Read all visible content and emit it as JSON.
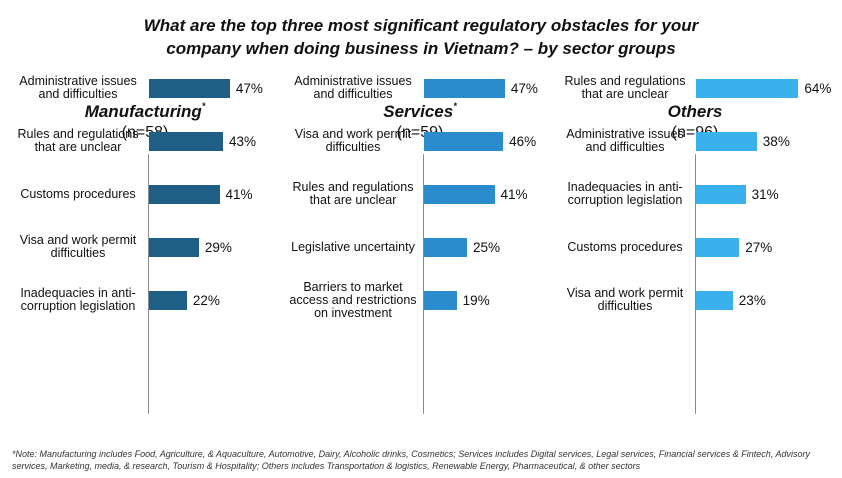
{
  "title_lines": [
    "What are the top three most significant regulatory obstacles for your",
    "company when doing business in Vietnam? – by sector groups"
  ],
  "footnote": "*Note: Manufacturing includes Food, Agriculture, & Aquaculture, Automotive, Dairy, Alcoholic drinks, Cosmetics; Services includes Digital services, Legal services, Financial services & Fintech, Advisory services, Marketing, media, & research, Tourism & Hospitality; Others includes Transportation & logistics, Renewable Energy, Pharmaceutical, & other sectors",
  "chart_data": [
    {
      "type": "bar",
      "orientation": "horizontal",
      "title": "Manufacturing",
      "title_marker": "*",
      "subtitle": "(n=58)",
      "color": "#1f5f86",
      "xlim": [
        0,
        100
      ],
      "unit": "%",
      "categories": [
        "Administrative issues and difficulties",
        "Rules and regulations that are unclear",
        "Customs procedures",
        "Visa and work permit difficulties",
        "Inadequacies in anti-corruption legislation"
      ],
      "values": [
        47,
        43,
        41,
        29,
        22
      ]
    },
    {
      "type": "bar",
      "orientation": "horizontal",
      "title": "Services",
      "title_marker": "*",
      "subtitle": "(n=59)",
      "color": "#2a8ccc",
      "xlim": [
        0,
        100
      ],
      "unit": "%",
      "categories": [
        "Administrative issues and difficulties",
        "Visa and work permit difficulties",
        "Rules and regulations that are unclear",
        "Legislative uncertainty",
        "Barriers to market access and restrictions on investment"
      ],
      "values": [
        47,
        46,
        41,
        25,
        19
      ]
    },
    {
      "type": "bar",
      "orientation": "horizontal",
      "title": "Others",
      "title_marker": "",
      "subtitle": "(n=96)",
      "color": "#3ab0ec",
      "xlim": [
        0,
        100
      ],
      "unit": "%",
      "categories": [
        "Rules and regulations that are unclear",
        "Administrative issues and difficulties",
        "Inadequacies in anti-corruption legislation",
        "Customs procedures",
        "Visa and work permit difficulties"
      ],
      "values": [
        64,
        38,
        31,
        27,
        23
      ]
    }
  ]
}
